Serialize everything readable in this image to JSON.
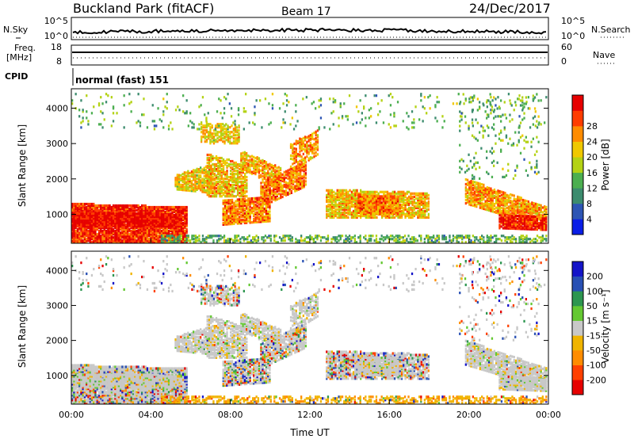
{
  "header": {
    "station": "Buckland Park (fitACF)",
    "beam": "Beam 17",
    "date": "24/Dec/2017"
  },
  "noise_panel": {
    "left_label": "N.Sky",
    "left_ticks": [
      "10^5",
      "10^0"
    ],
    "right_ticks": [
      "10^5",
      "10^0"
    ],
    "right_label": "N.Search"
  },
  "freq_panel": {
    "label_line1": "Freq.",
    "label_line2": "[MHz]",
    "left_ticks": [
      "18",
      "8"
    ],
    "right_ticks": [
      "60",
      "0"
    ],
    "right_label": "Nave"
  },
  "cpid": {
    "label": "CPID",
    "value": "normal (fast) 151"
  },
  "chart_data": [
    {
      "type": "heatmap",
      "name": "power",
      "ylabel": "Slant Range [km]",
      "xlabel": "",
      "xlim": [
        "00:00",
        "00:00"
      ],
      "ylim": [
        180,
        4550
      ],
      "yticks": [
        1000,
        2000,
        3000,
        4000
      ],
      "colorbar_label": "Power [dB]",
      "colorbar_ticks": [
        "4",
        "8",
        "12",
        "16",
        "20",
        "24",
        "28"
      ],
      "colorbar_colors": [
        "#0a1ee6",
        "#2d55b4",
        "#3c8c6e",
        "#4caf50",
        "#b4d214",
        "#f0c800",
        "#ff8c00",
        "#ff3c00",
        "#e60000"
      ]
    },
    {
      "type": "heatmap",
      "name": "velocity",
      "ylabel": "Slant Range [km]",
      "xlabel": "Time UT",
      "xlim": [
        "00:00",
        "00:00"
      ],
      "ylim": [
        180,
        4550
      ],
      "yticks": [
        1000,
        2000,
        3000,
        4000
      ],
      "xticks": [
        "00:00",
        "04:00",
        "08:00",
        "12:00",
        "16:00",
        "20:00",
        "00:00"
      ],
      "colorbar_label": "Velocity [m s⁻¹]",
      "colorbar_ticks": [
        "-200",
        "-100",
        "-50",
        "-15",
        "15",
        "50",
        "100",
        "200"
      ],
      "colorbar_colors": [
        "#e60000",
        "#ff4000",
        "#ff8c00",
        "#f0b400",
        "#c8c8c8",
        "#64c832",
        "#2d9650",
        "#2850b4",
        "#1414c8"
      ]
    }
  ]
}
